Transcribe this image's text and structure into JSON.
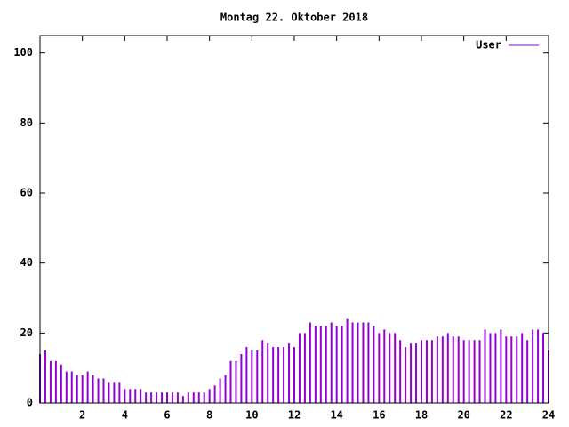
{
  "chart_data": {
    "type": "impulses",
    "title": "Montag 22. Oktober 2018",
    "x": [
      0,
      0.25,
      0.5,
      0.75,
      1,
      1.25,
      1.5,
      1.75,
      2,
      2.25,
      2.5,
      2.75,
      3,
      3.25,
      3.5,
      3.75,
      4,
      4.25,
      4.5,
      4.75,
      5,
      5.25,
      5.5,
      5.75,
      6,
      6.25,
      6.5,
      6.75,
      7,
      7.25,
      7.5,
      7.75,
      8,
      8.25,
      8.5,
      8.75,
      9,
      9.25,
      9.5,
      9.75,
      10,
      10.25,
      10.5,
      10.75,
      11,
      11.25,
      11.5,
      11.75,
      12,
      12.25,
      12.5,
      12.75,
      13,
      13.25,
      13.5,
      13.75,
      14,
      14.25,
      14.5,
      14.75,
      15,
      15.25,
      15.5,
      15.75,
      16,
      16.25,
      16.5,
      16.75,
      17,
      17.25,
      17.5,
      17.75,
      18,
      18.25,
      18.5,
      18.75,
      19,
      19.25,
      19.5,
      19.75,
      20,
      20.25,
      20.5,
      20.75,
      21,
      21.25,
      21.5,
      21.75,
      22,
      22.25,
      22.5,
      22.75,
      23,
      23.25,
      23.5,
      23.75,
      24
    ],
    "series": [
      {
        "name": "User",
        "color": "#9400d3",
        "values": [
          14,
          15,
          12,
          12,
          11,
          9,
          9,
          8,
          8,
          9,
          8,
          7,
          7,
          6,
          6,
          6,
          4,
          4,
          4,
          4,
          3,
          3,
          3,
          3,
          3,
          3,
          3,
          2,
          3,
          3,
          3,
          3,
          4,
          5,
          7,
          8,
          12,
          12,
          14,
          16,
          15,
          15,
          18,
          17,
          16,
          16,
          16,
          17,
          16,
          20,
          20,
          23,
          22,
          22,
          22,
          23,
          22,
          22,
          24,
          23,
          23,
          23,
          23,
          22,
          20,
          21,
          20,
          20,
          18,
          16,
          17,
          17,
          18,
          18,
          18,
          19,
          19,
          20,
          19,
          19,
          18,
          18,
          18,
          18,
          21,
          20,
          20,
          21,
          19,
          19,
          19,
          20,
          18,
          21,
          21,
          20,
          15
        ]
      }
    ],
    "xlim": [
      0,
      24
    ],
    "xticks": [
      2,
      4,
      6,
      8,
      10,
      12,
      14,
      16,
      18,
      20,
      22,
      24
    ],
    "ylim": [
      0,
      105
    ],
    "yticks": [
      0,
      20,
      40,
      60,
      80,
      100
    ],
    "legend": "top-right"
  }
}
